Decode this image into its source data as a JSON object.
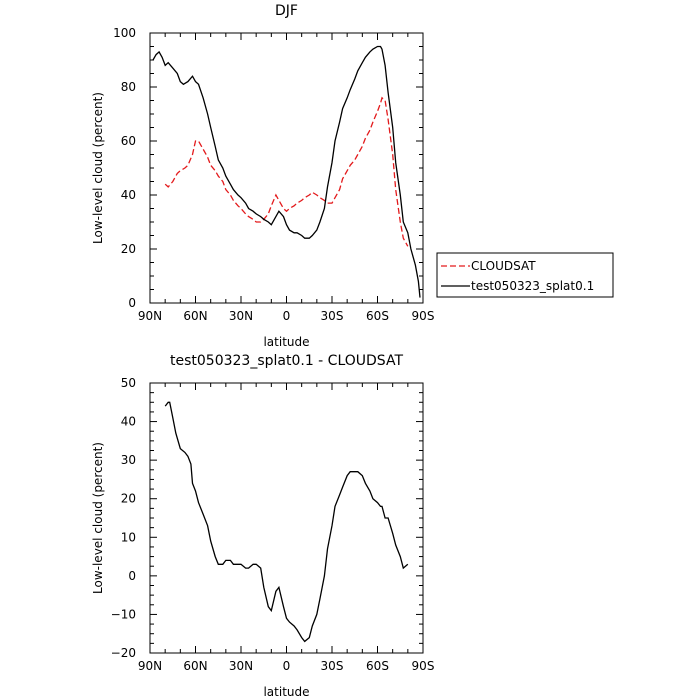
{
  "chart_data": [
    {
      "type": "line",
      "title": "DJF",
      "xlabel": "latitude",
      "ylabel": "Low-level cloud (percent)",
      "xlim": [
        90,
        -90
      ],
      "ylim": [
        0,
        100
      ],
      "x_ticks": [
        90,
        60,
        30,
        0,
        -30,
        -60,
        -90
      ],
      "x_tick_labels": [
        "90N",
        "60N",
        "30N",
        "0",
        "30S",
        "60S",
        "90S"
      ],
      "y_ticks": [
        0,
        20,
        40,
        60,
        80,
        100
      ],
      "y_tick_labels": [
        "0",
        "20",
        "40",
        "60",
        "80",
        "100"
      ],
      "legend_position": "outside-right",
      "series": [
        {
          "name": "CLOUDSAT",
          "color": "#e31a1c",
          "dash": "dashed",
          "x": [
            80,
            78,
            75,
            72,
            70,
            67,
            65,
            62,
            60,
            58,
            55,
            52,
            50,
            47,
            45,
            42,
            40,
            37,
            35,
            32,
            30,
            27,
            25,
            22,
            20,
            17,
            15,
            12,
            10,
            7,
            5,
            2,
            0,
            -2,
            -5,
            -7,
            -10,
            -12,
            -15,
            -17,
            -20,
            -22,
            -25,
            -27,
            -30,
            -32,
            -35,
            -37,
            -40,
            -42,
            -45,
            -47,
            -50,
            -52,
            -55,
            -57,
            -60,
            -62,
            -63,
            -65,
            -67,
            -70,
            -72,
            -75,
            -77,
            -80
          ],
          "y": [
            44,
            43,
            45,
            48,
            49,
            50,
            51,
            55,
            60,
            60,
            57,
            54,
            51,
            49,
            47,
            45,
            42,
            40,
            38,
            36,
            35,
            33,
            32,
            31,
            30,
            30,
            31,
            33,
            36,
            40,
            38,
            35,
            34,
            35,
            36,
            37,
            38,
            39,
            40,
            41,
            40,
            39,
            38,
            37,
            37,
            39,
            42,
            46,
            49,
            51,
            53,
            55,
            58,
            61,
            64,
            67,
            71,
            74,
            76,
            75,
            68,
            55,
            42,
            30,
            24,
            21
          ]
        },
        {
          "name": "test050323_splat0.1",
          "color": "#000000",
          "dash": "solid",
          "x": [
            88,
            86,
            84,
            82,
            80,
            78,
            75,
            72,
            70,
            68,
            65,
            62,
            60,
            58,
            55,
            52,
            50,
            47,
            45,
            42,
            40,
            37,
            35,
            32,
            30,
            27,
            25,
            22,
            20,
            17,
            15,
            12,
            10,
            7,
            5,
            2,
            0,
            -2,
            -5,
            -7,
            -10,
            -12,
            -15,
            -17,
            -20,
            -22,
            -25,
            -27,
            -30,
            -32,
            -35,
            -37,
            -40,
            -42,
            -45,
            -47,
            -50,
            -52,
            -55,
            -57,
            -60,
            -62,
            -63,
            -65,
            -67,
            -70,
            -72,
            -75,
            -77,
            -80,
            -82,
            -85,
            -87,
            -88
          ],
          "y": [
            90,
            92,
            93,
            91,
            88,
            89,
            87,
            85,
            82,
            81,
            82,
            84,
            82,
            81,
            76,
            70,
            65,
            58,
            53,
            50,
            47,
            44,
            42,
            40,
            39,
            37,
            35,
            34,
            33,
            32,
            31,
            30,
            29,
            32,
            34,
            32,
            29,
            27,
            26,
            26,
            25,
            24,
            24,
            25,
            27,
            30,
            35,
            43,
            52,
            60,
            67,
            72,
            76,
            79,
            83,
            86,
            89,
            91,
            93,
            94,
            95,
            95,
            94,
            88,
            78,
            65,
            52,
            40,
            30,
            26,
            20,
            14,
            8,
            2
          ]
        }
      ]
    },
    {
      "type": "line",
      "title": "test050323_splat0.1 - CLOUDSAT",
      "xlabel": "latitude",
      "ylabel": "Low-level cloud (percent)",
      "xlim": [
        90,
        -90
      ],
      "ylim": [
        -20,
        50
      ],
      "x_ticks": [
        90,
        60,
        30,
        0,
        -30,
        -60,
        -90
      ],
      "x_tick_labels": [
        "90N",
        "60N",
        "30N",
        "0",
        "30S",
        "60S",
        "90S"
      ],
      "y_ticks": [
        -20,
        -10,
        0,
        10,
        20,
        30,
        40,
        50
      ],
      "y_tick_labels": [
        "−20",
        "−10",
        "0",
        "10",
        "20",
        "30",
        "40",
        "50"
      ],
      "series": [
        {
          "color": "#000000",
          "dash": "solid",
          "x": [
            80,
            78,
            77,
            75,
            73,
            70,
            67,
            65,
            63,
            62,
            60,
            58,
            55,
            52,
            50,
            47,
            45,
            42,
            40,
            37,
            35,
            32,
            30,
            27,
            25,
            22,
            20,
            17,
            15,
            12,
            10,
            7,
            5,
            2,
            0,
            -2,
            -5,
            -7,
            -10,
            -12,
            -15,
            -17,
            -20,
            -22,
            -25,
            -27,
            -30,
            -32,
            -35,
            -37,
            -40,
            -42,
            -45,
            -47,
            -50,
            -52,
            -55,
            -57,
            -60,
            -62,
            -63,
            -65,
            -67,
            -70,
            -72,
            -75,
            -77,
            -80
          ],
          "y": [
            44,
            45,
            45,
            41,
            37,
            33,
            32,
            31,
            29,
            24,
            22,
            19,
            16,
            13,
            9,
            5,
            3,
            3,
            4,
            4,
            3,
            3,
            3,
            2,
            2,
            3,
            3,
            2,
            -3,
            -8,
            -9,
            -4,
            -3,
            -8,
            -11,
            -12,
            -13,
            -14,
            -16,
            -17,
            -16,
            -13,
            -10,
            -6,
            0,
            7,
            13,
            18,
            21,
            23,
            26,
            27,
            27,
            27,
            26,
            24,
            22,
            20,
            19,
            18,
            18,
            15,
            15,
            11,
            8,
            5,
            2,
            3
          ]
        }
      ]
    }
  ]
}
